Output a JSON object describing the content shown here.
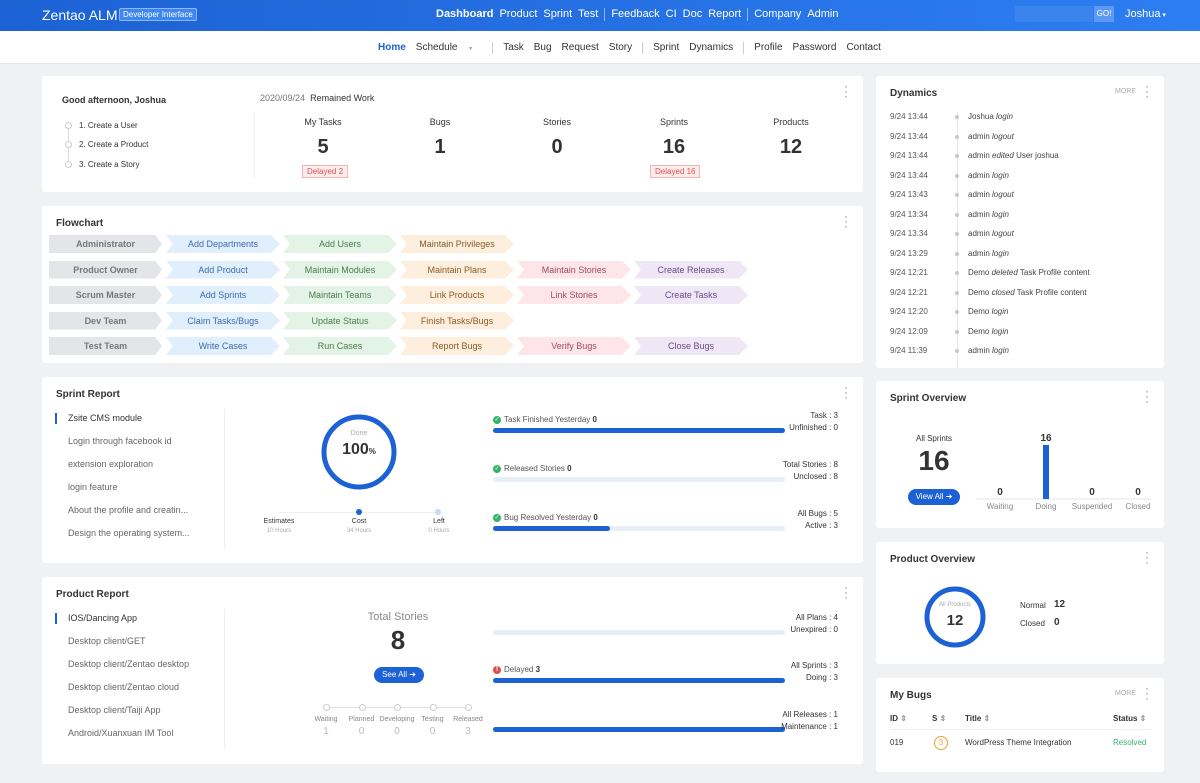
{
  "topbar": {
    "brand": "Zentao ALM",
    "badge": "Developer Interface",
    "nav": [
      "Dashboard",
      "Product",
      "Sprint",
      "Test",
      "Feedback",
      "CI",
      "Doc",
      "Report",
      "Company",
      "Admin"
    ],
    "go": "GO!",
    "user": "Joshua"
  },
  "subnav": [
    "Home",
    "Schedule",
    "Task",
    "Bug",
    "Request",
    "Story",
    "Sprint",
    "Dynamics",
    "Profile",
    "Password",
    "Contact"
  ],
  "welcome": {
    "greeting": "Good afternoon, Joshua",
    "date": "2020/09/24",
    "remained": "Remained Work",
    "steps": [
      "1. Create a User",
      "2. Create a Product",
      "3. Create a Story"
    ],
    "stats": [
      {
        "label": "My Tasks",
        "value": "5",
        "delay": "Delayed 2"
      },
      {
        "label": "Bugs",
        "value": "1",
        "delay": ""
      },
      {
        "label": "Stories",
        "value": "0",
        "delay": ""
      },
      {
        "label": "Sprints",
        "value": "16",
        "delay": "Delayed 16"
      },
      {
        "label": "Products",
        "value": "12",
        "delay": ""
      }
    ]
  },
  "flowchart": {
    "title": "Flowchart",
    "rows": [
      [
        "Administrator",
        "Add Departments",
        "Add Users",
        "Maintain Privileges"
      ],
      [
        "Product Owner",
        "Add Product",
        "Maintain Modules",
        "Maintain Plans",
        "Maintain Stories",
        "Create Releases"
      ],
      [
        "Scrum Master",
        "Add Sprints",
        "Maintain Teams",
        "Link Products",
        "Link Stories",
        "Create Tasks"
      ],
      [
        "Dev Team",
        "Claim Tasks/Bugs",
        "Update Status",
        "Finish Tasks/Bugs"
      ],
      [
        "Test Team",
        "Write Cases",
        "Run Cases",
        "Report Bugs",
        "Verify Bugs",
        "Close Bugs"
      ]
    ]
  },
  "sprint_report": {
    "title": "Sprint Report",
    "items": [
      "Zsite CMS module",
      "Login through facebook id",
      "extension exploration",
      "login feature",
      "About the profile and creatin...",
      "Design the operating system..."
    ],
    "done_label": "Done",
    "done_value": "100",
    "done_unit": "%",
    "estimates": "Estimates",
    "estimates_v": "10 Hours",
    "cost": "Cost",
    "cost_v": "34 Hours",
    "left": "Left",
    "left_v": "0 Hours",
    "rows": [
      {
        "label": "Task Finished Yesterday",
        "value": "0",
        "r1": "Task : 3",
        "r2": "Unfinished : 0",
        "fill": 1.0
      },
      {
        "label": "Released Stories",
        "value": "0",
        "r1": "Total Stories : 8",
        "r2": "Unclosed : 8",
        "fill": 0
      },
      {
        "label": "Bug Resolved Yesterday",
        "value": "0",
        "r1": "All Bugs : 5",
        "r2": "Active : 3",
        "fill": 0.4
      }
    ]
  },
  "product_report": {
    "title": "Product Report",
    "items": [
      "IOS/Dancing App",
      "Desktop client/GET",
      "Desktop client/Zentao desktop",
      "Desktop client/Zentao cloud",
      "Desktop client/Taiji App",
      "Android/Xuanxuan IM Tool"
    ],
    "total_label": "Total Stories",
    "total": "8",
    "see_all": "See All",
    "stages": [
      {
        "n": "Waiting",
        "v": "1"
      },
      {
        "n": "Planned",
        "v": "0"
      },
      {
        "n": "Developing",
        "v": "0"
      },
      {
        "n": "Testing",
        "v": "0"
      },
      {
        "n": "Released",
        "v": "3"
      }
    ],
    "rows": [
      {
        "label": "",
        "value": "",
        "r1": "All Plans : 4",
        "r2": "Unexpired : 0",
        "fill": 0
      },
      {
        "label": "Delayed",
        "value": "3",
        "r1": "All Sprints : 3",
        "r2": "Doing : 3",
        "fill": 1.0
      },
      {
        "label": "",
        "value": "",
        "r1": "All Releases : 1",
        "r2": "Maintenance : 1",
        "fill": 1.0
      }
    ]
  },
  "dynamics": {
    "title": "Dynamics",
    "more": "MORE",
    "items": [
      {
        "t": "9/24 13:44",
        "who": "Joshua",
        "act": "login",
        "obj": ""
      },
      {
        "t": "9/24 13:44",
        "who": "admin",
        "act": "logout",
        "obj": ""
      },
      {
        "t": "9/24 13:44",
        "who": "admin",
        "act": "edited",
        "obj": "User joshua"
      },
      {
        "t": "9/24 13:44",
        "who": "admin",
        "act": "login",
        "obj": ""
      },
      {
        "t": "9/24 13:43",
        "who": "admin",
        "act": "logout",
        "obj": ""
      },
      {
        "t": "9/24 13:34",
        "who": "admin",
        "act": "login",
        "obj": ""
      },
      {
        "t": "9/24 13:34",
        "who": "admin",
        "act": "logout",
        "obj": ""
      },
      {
        "t": "9/24 13:29",
        "who": "admin",
        "act": "login",
        "obj": ""
      },
      {
        "t": "9/24 12:21",
        "who": "Demo",
        "act": "deleted",
        "obj": "Task Profile content"
      },
      {
        "t": "9/24 12:21",
        "who": "Demo",
        "act": "closed",
        "obj": "Task Profile content"
      },
      {
        "t": "9/24 12:20",
        "who": "Demo",
        "act": "login",
        "obj": ""
      },
      {
        "t": "9/24 12:09",
        "who": "Demo",
        "act": "login",
        "obj": ""
      },
      {
        "t": "9/24 11:39",
        "who": "admin",
        "act": "login",
        "obj": ""
      }
    ]
  },
  "sprint_overview": {
    "title": "Sprint Overview",
    "all_label": "All Sprints",
    "all": "16",
    "view_all": "View All",
    "chart_data": {
      "type": "bar",
      "categories": [
        "Waiting",
        "Doing",
        "Suspended",
        "Closed"
      ],
      "values": [
        0,
        16,
        0,
        0
      ]
    }
  },
  "product_overview": {
    "title": "Product Overview",
    "all_label": "All Products",
    "all": "12",
    "normal_label": "Normal",
    "normal": "12",
    "closed_label": "Closed",
    "closed": "0"
  },
  "my_bugs": {
    "title": "My Bugs",
    "more": "MORE",
    "cols": [
      "ID",
      "S",
      "Title",
      "Status"
    ],
    "rows": [
      {
        "id": "019",
        "s": "3",
        "title": "WordPress Theme Integration",
        "status": "Resolved"
      }
    ]
  },
  "colors": {
    "primary": "#1c62d4",
    "success": "#34b36b",
    "danger": "#e24c4c"
  }
}
